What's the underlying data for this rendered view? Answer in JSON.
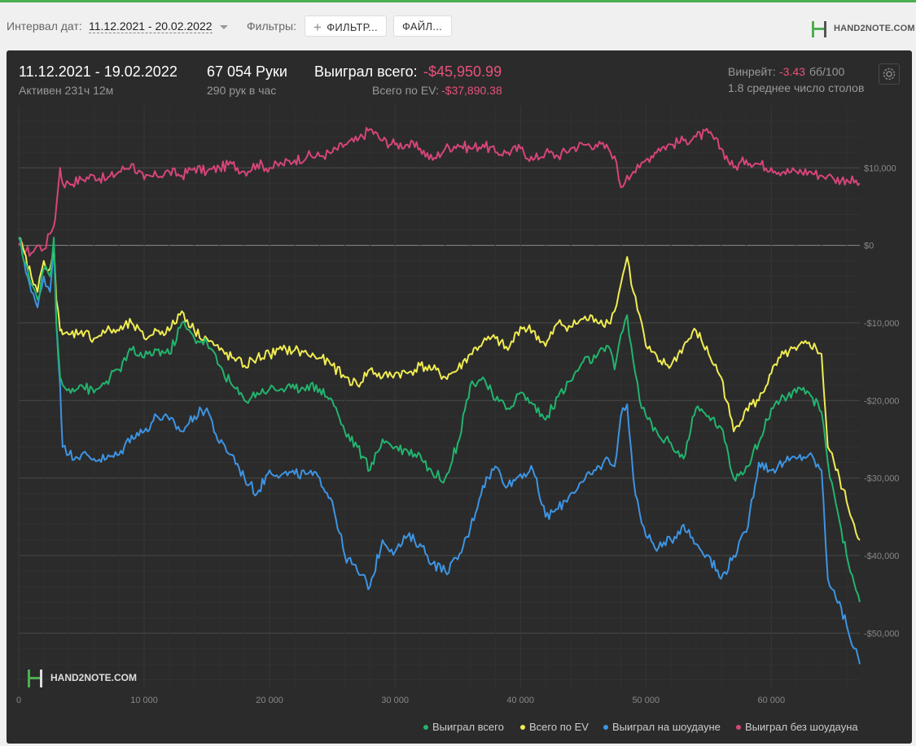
{
  "toolbar": {
    "date_interval_label": "Интервал дат:",
    "date_interval_value": "11.12.2021 - 20.02.2022",
    "filters_label": "Фильтры:",
    "filter_button": "ФИЛЬТР...",
    "file_button": "ФАЙЛ...",
    "brand": "HAND2NOTE.COM"
  },
  "stats": {
    "period": "11.12.2021 - 19.02.2022",
    "active": "Активен 231ч 12м",
    "hands": "67 054 Руки",
    "hands_per_hour": "290 рук в час",
    "won_total_label": "Выиграл всего:",
    "won_total_value": "-$45,950.99",
    "ev_total_label": "Всего по EV:",
    "ev_total_value": "-$37,890.38",
    "winrate_label": "Винрейт:",
    "winrate_value": "-3.43",
    "winrate_unit": "бб/100",
    "avg_tables": "1.8 среднее число столов"
  },
  "colors": {
    "accent_negative": "#e8527a",
    "green": "#22b46e",
    "yellow": "#f0ec52",
    "blue": "#3d94e2",
    "pink": "#d6457a"
  },
  "icons": {
    "settings": "gear-icon",
    "brand_logo": "hand2note-logo-icon"
  },
  "watermark": "HAND2NOTE.COM",
  "chart_data": {
    "type": "line",
    "xlim": [
      0,
      67054
    ],
    "ylim": [
      -57000,
      18000
    ],
    "x_ticks": [
      0,
      10000,
      20000,
      30000,
      40000,
      50000,
      60000
    ],
    "x_tick_labels": [
      "0",
      "10 000",
      "20 000",
      "30 000",
      "40 000",
      "50 000",
      "60 000"
    ],
    "y_ticks": [
      10000,
      0,
      -10000,
      -20000,
      -30000,
      -40000,
      -50000
    ],
    "y_tick_labels": [
      "$10,000",
      "$0",
      "-$10,000",
      "-$20,000",
      "-$30,000",
      "-$40,000",
      "-$50,000"
    ],
    "grid": true,
    "legend_position": "bottom-right",
    "series": [
      {
        "name": "Выиграл всего",
        "color": "#22b46e",
        "x": [
          0,
          1000,
          1500,
          2000,
          2500,
          2800,
          3000,
          3300,
          3500,
          4000,
          5000,
          6000,
          7000,
          8000,
          9000,
          10000,
          11000,
          12000,
          13000,
          14000,
          15000,
          16000,
          17000,
          18000,
          19000,
          20000,
          21000,
          22000,
          23000,
          24000,
          25000,
          26000,
          27000,
          28000,
          29000,
          30000,
          31000,
          32000,
          33000,
          34000,
          35000,
          36000,
          37000,
          38000,
          39000,
          40000,
          41000,
          42000,
          43000,
          44000,
          45000,
          46000,
          47000,
          47500,
          48000,
          48500,
          49000,
          49500,
          50000,
          51000,
          52000,
          53000,
          54000,
          55000,
          56000,
          57000,
          58000,
          59000,
          60000,
          61000,
          62000,
          63000,
          64000,
          64500,
          65000,
          66000,
          67054
        ],
        "y": [
          1000,
          -5000,
          -7000,
          -3000,
          -4000,
          1000,
          -10000,
          -17000,
          -18000,
          -18500,
          -18000,
          -19000,
          -17500,
          -16000,
          -13500,
          -14500,
          -13500,
          -14000,
          -10000,
          -12000,
          -12500,
          -15500,
          -18000,
          -20000,
          -19000,
          -18500,
          -18500,
          -18500,
          -18000,
          -18500,
          -20000,
          -24000,
          -26000,
          -29000,
          -25000,
          -26000,
          -26500,
          -27000,
          -29500,
          -30000,
          -25500,
          -18000,
          -17000,
          -20000,
          -21000,
          -19000,
          -20500,
          -22500,
          -19500,
          -17500,
          -15000,
          -14500,
          -13000,
          -16000,
          -11500,
          -9000,
          -15000,
          -20000,
          -22000,
          -24500,
          -25500,
          -27500,
          -21000,
          -22000,
          -23500,
          -30000,
          -28500,
          -25500,
          -21000,
          -19500,
          -19000,
          -19000,
          -21500,
          -28000,
          -32000,
          -40000,
          -46000
        ]
      },
      {
        "name": "Всего по EV",
        "color": "#f0ec52",
        "x": [
          0,
          1000,
          1500,
          2000,
          2500,
          2800,
          3000,
          3300,
          3500,
          4000,
          5000,
          6000,
          7000,
          8000,
          9000,
          10000,
          11000,
          12000,
          13000,
          14000,
          15000,
          16000,
          17000,
          18000,
          19000,
          20000,
          21000,
          22000,
          23000,
          24000,
          25000,
          26000,
          27000,
          28000,
          29000,
          30000,
          31000,
          32000,
          33000,
          34000,
          35000,
          36000,
          37000,
          38000,
          39000,
          40000,
          41000,
          42000,
          43000,
          44000,
          45000,
          46000,
          47000,
          47500,
          48000,
          48500,
          49000,
          49500,
          50000,
          51000,
          52000,
          53000,
          54000,
          55000,
          56000,
          57000,
          58000,
          59000,
          60000,
          61000,
          62000,
          63000,
          64000,
          64500,
          65000,
          66000,
          67054
        ],
        "y": [
          1000,
          -4000,
          -6000,
          -2000,
          -3000,
          0,
          -7000,
          -11000,
          -11500,
          -11500,
          -11000,
          -12000,
          -11000,
          -11000,
          -10000,
          -12000,
          -11000,
          -11000,
          -8500,
          -11000,
          -12000,
          -13500,
          -14500,
          -15500,
          -14500,
          -14000,
          -13500,
          -13500,
          -14000,
          -14500,
          -15500,
          -17000,
          -18000,
          -16000,
          -17000,
          -16500,
          -16500,
          -15500,
          -16000,
          -17000,
          -16000,
          -14000,
          -12500,
          -12000,
          -13500,
          -10500,
          -11000,
          -13000,
          -10000,
          -10500,
          -9500,
          -9500,
          -10000,
          -8500,
          -5000,
          -1500,
          -6000,
          -9000,
          -13000,
          -15000,
          -15500,
          -13000,
          -11000,
          -14000,
          -17000,
          -24000,
          -21000,
          -20000,
          -16500,
          -14000,
          -13500,
          -12500,
          -14000,
          -26000,
          -28000,
          -33000,
          -38000
        ]
      },
      {
        "name": "Выиграл на шоудауне",
        "color": "#3d94e2",
        "x": [
          0,
          1000,
          1500,
          2000,
          2500,
          2800,
          3000,
          3300,
          3500,
          4000,
          5000,
          6000,
          7000,
          8000,
          9000,
          10000,
          11000,
          12000,
          13000,
          14000,
          15000,
          16000,
          17000,
          18000,
          19000,
          20000,
          21000,
          22000,
          23000,
          24000,
          25000,
          26000,
          27000,
          28000,
          29000,
          30000,
          31000,
          32000,
          33000,
          34000,
          35000,
          36000,
          37000,
          38000,
          39000,
          40000,
          41000,
          42000,
          43000,
          44000,
          45000,
          46000,
          47000,
          47500,
          48000,
          48500,
          49000,
          49500,
          50000,
          51000,
          52000,
          53000,
          54000,
          55000,
          56000,
          57000,
          58000,
          59000,
          60000,
          61000,
          62000,
          63000,
          64000,
          64500,
          65000,
          66000,
          67054
        ],
        "y": [
          1000,
          -6000,
          -8000,
          -4000,
          -6000,
          0,
          -10000,
          -18000,
          -26000,
          -27000,
          -27000,
          -27500,
          -27500,
          -27000,
          -24500,
          -24000,
          -22000,
          -22500,
          -24000,
          -22000,
          -21000,
          -25500,
          -27000,
          -30000,
          -32000,
          -29000,
          -29500,
          -29500,
          -29500,
          -30000,
          -33000,
          -40000,
          -42000,
          -44000,
          -38000,
          -39500,
          -37500,
          -38500,
          -41000,
          -42000,
          -40500,
          -36500,
          -31000,
          -28500,
          -31000,
          -29500,
          -29000,
          -35000,
          -34000,
          -32000,
          -30500,
          -29000,
          -27500,
          -28500,
          -22000,
          -20500,
          -30000,
          -34500,
          -37500,
          -39000,
          -38000,
          -36000,
          -38500,
          -40000,
          -43000,
          -40000,
          -37000,
          -28000,
          -29000,
          -28000,
          -27500,
          -27000,
          -29000,
          -43000,
          -44500,
          -49000,
          -54000
        ]
      },
      {
        "name": "Выиграл без шоудауна",
        "color": "#d6457a",
        "x": [
          0,
          1000,
          1500,
          2000,
          2500,
          2800,
          3000,
          3300,
          3500,
          4000,
          5000,
          6000,
          7000,
          8000,
          9000,
          10000,
          11000,
          12000,
          13000,
          14000,
          15000,
          16000,
          17000,
          18000,
          19000,
          20000,
          21000,
          22000,
          23000,
          24000,
          25000,
          26000,
          27000,
          28000,
          29000,
          30000,
          31000,
          32000,
          33000,
          34000,
          35000,
          36000,
          37000,
          38000,
          39000,
          40000,
          41000,
          42000,
          43000,
          44000,
          45000,
          46000,
          47000,
          47500,
          48000,
          48500,
          49000,
          49500,
          50000,
          51000,
          52000,
          53000,
          54000,
          55000,
          56000,
          57000,
          58000,
          59000,
          60000,
          61000,
          62000,
          63000,
          64000,
          64500,
          65000,
          66000,
          67054
        ],
        "y": [
          0,
          -1000,
          0,
          -500,
          1500,
          2500,
          5000,
          10000,
          8000,
          8000,
          8500,
          9000,
          8500,
          9500,
          10500,
          8500,
          9000,
          9500,
          9000,
          10000,
          9500,
          10000,
          10500,
          9500,
          10500,
          10000,
          10500,
          11000,
          11500,
          11500,
          12000,
          13000,
          13500,
          15000,
          13500,
          13000,
          13000,
          12500,
          11000,
          12500,
          13000,
          12500,
          13000,
          12000,
          12000,
          12500,
          11000,
          12000,
          11500,
          12500,
          13000,
          13000,
          12500,
          11500,
          7500,
          9000,
          9500,
          10000,
          11000,
          12500,
          13000,
          13500,
          14000,
          14500,
          12500,
          10000,
          11000,
          10500,
          10000,
          9500,
          9500,
          9500,
          9000,
          9000,
          8500,
          8500,
          8000
        ]
      }
    ]
  }
}
